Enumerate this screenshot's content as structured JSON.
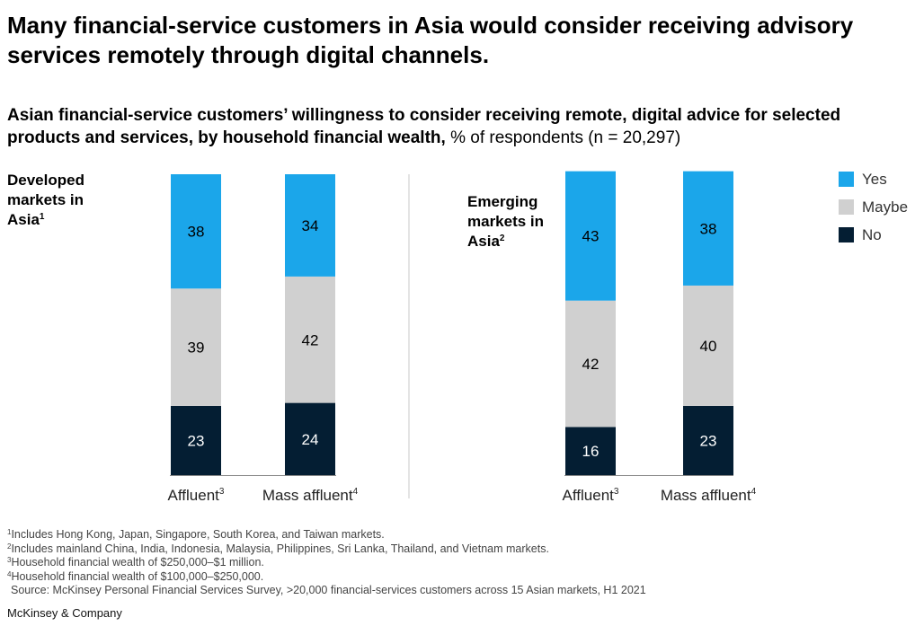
{
  "title": "Many financial-service customers in Asia would consider receiving advisory services remotely through digital channels.",
  "subtitle_bold": "Asian financial-service customers’ willingness to consider receiving remote, digital advice for selected products and services, by household financial wealth,",
  "subtitle_regular": " % of respondents (n = 20,297)",
  "colors": {
    "yes": "#1ba6ea",
    "maybe": "#d0d0d0",
    "no": "#041e33",
    "axis": "#888888"
  },
  "legend": [
    {
      "label": "Yes",
      "color": "#1ba6ea"
    },
    {
      "label": "Maybe",
      "color": "#d0d0d0"
    },
    {
      "label": "No",
      "color": "#041e33"
    }
  ],
  "chart_data": [
    {
      "type": "bar",
      "stacked": true,
      "panel_label": "Developed markets in Asia",
      "panel_sup": "1",
      "categories": [
        "Affluent",
        "Mass affluent"
      ],
      "category_sups": [
        "3",
        "4"
      ],
      "series": [
        {
          "name": "Yes",
          "values": [
            38,
            34
          ]
        },
        {
          "name": "Maybe",
          "values": [
            39,
            42
          ]
        },
        {
          "name": "No",
          "values": [
            23,
            24
          ]
        }
      ],
      "ylabel": "% of respondents",
      "ylim": [
        0,
        100
      ]
    },
    {
      "type": "bar",
      "stacked": true,
      "panel_label": "Emerging markets in Asia",
      "panel_sup": "2",
      "categories": [
        "Affluent",
        "Mass affluent"
      ],
      "category_sups": [
        "3",
        "4"
      ],
      "series": [
        {
          "name": "Yes",
          "values": [
            43,
            38
          ]
        },
        {
          "name": "Maybe",
          "values": [
            42,
            40
          ]
        },
        {
          "name": "No",
          "values": [
            16,
            23
          ]
        }
      ],
      "ylabel": "% of respondents",
      "ylim": [
        0,
        100
      ]
    }
  ],
  "footnotes": [
    {
      "sup": "1",
      "text": "Includes Hong Kong, Japan, Singapore, South Korea, and Taiwan markets."
    },
    {
      "sup": "2",
      "text": "Includes mainland China, India, Indonesia, Malaysia, Philippines, Sri Lanka, Thailand, and Vietnam markets."
    },
    {
      "sup": "3",
      "text": "Household financial wealth of $250,000–$1 million."
    },
    {
      "sup": "4",
      "text": "Household financial wealth of $100,000–$250,000."
    }
  ],
  "source": "Source: McKinsey Personal Financial Services Survey, >20,000 financial-services customers across 15 Asian markets, H1 2021",
  "brand": "McKinsey & Company"
}
